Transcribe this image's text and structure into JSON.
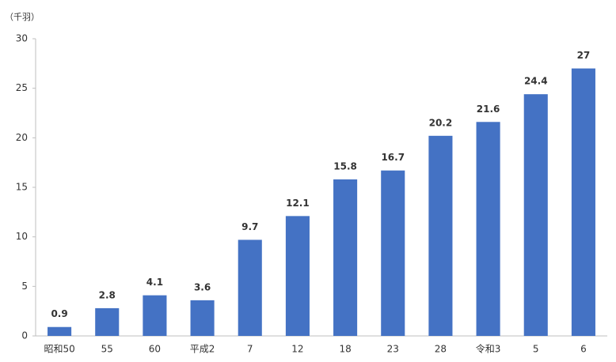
{
  "chart_data": {
    "type": "bar",
    "unit_label": "（千羽）",
    "categories": [
      "昭和50",
      "55",
      "60",
      "平成2",
      "7",
      "12",
      "18",
      "23",
      "28",
      "令和3",
      "5",
      "6"
    ],
    "values": [
      0.9,
      2.8,
      4.1,
      3.6,
      9.7,
      12.1,
      15.8,
      16.7,
      20.2,
      21.6,
      24.4,
      27
    ],
    "color": "#4472c4",
    "ylim": [
      0,
      30
    ],
    "yticks": [
      0,
      5,
      10,
      15,
      20,
      25,
      30
    ],
    "grid": false
  }
}
